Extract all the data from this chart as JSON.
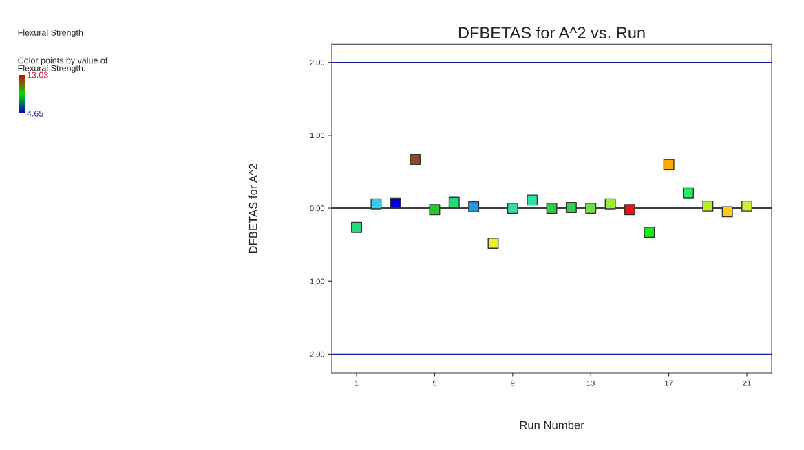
{
  "chart_data": {
    "type": "scatter",
    "title": "DFBETAS for A^2 vs. Run",
    "xlabel": "Run Number",
    "ylabel": "DFBETAS for A^2",
    "annotations": [
      "Flexural Strength"
    ],
    "clabel": "Color points by value of\nFlexural Strength:",
    "clim": [
      4.65,
      13.03
    ],
    "cticks": [
      {
        "value": 4.65,
        "label": "4.65"
      },
      {
        "value": 13.03,
        "label": "13.03"
      }
    ],
    "x": [
      1,
      2,
      3,
      4,
      5,
      6,
      7,
      8,
      9,
      10,
      11,
      12,
      13,
      14,
      15,
      16,
      17,
      18,
      19,
      20,
      21
    ],
    "series": [
      {
        "values": [
          -0.26,
          0.06,
          0.07,
          0.67,
          -0.02,
          0.08,
          0.02,
          -0.48,
          0.0,
          0.11,
          0.0,
          0.01,
          0.0,
          0.06,
          -0.02,
          -0.33,
          0.6,
          0.21,
          0.03,
          -0.05,
          0.03
        ],
        "colors": [
          "#22dd77",
          "#33ccee",
          "#0000dd",
          "#8b4a2b",
          "#22cc22",
          "#22dd77",
          "#2299dd",
          "#eeee22",
          "#33ddaa",
          "#33ddaa",
          "#33cc44",
          "#33cc55",
          "#77dd44",
          "#99ee33",
          "#ee1111",
          "#11ee11",
          "#ffaa00",
          "#22ee66",
          "#bbee22",
          "#ffcc11",
          "#ccee33"
        ]
      }
    ],
    "marker": "square",
    "xlim": [
      -0.27,
      22.27
    ],
    "xticks": [
      1,
      5,
      9,
      13,
      17,
      21
    ],
    "ylim": [
      -2.26,
      2.25
    ],
    "yticks": [
      {
        "value": -2,
        "label": "-2.00"
      },
      {
        "value": -1,
        "label": "-1.00"
      },
      {
        "value": 0,
        "label": "0.00"
      },
      {
        "value": 1,
        "label": "1.00"
      },
      {
        "value": 2,
        "label": "2.00"
      }
    ],
    "ref_lines": [
      {
        "axis": "y",
        "value": 2,
        "color": "#1a1aa6"
      },
      {
        "axis": "y",
        "value": 0,
        "color": "#000000"
      },
      {
        "axis": "y",
        "value": -2,
        "color": "#1a1aa6"
      }
    ],
    "grid": false,
    "legend": false
  }
}
